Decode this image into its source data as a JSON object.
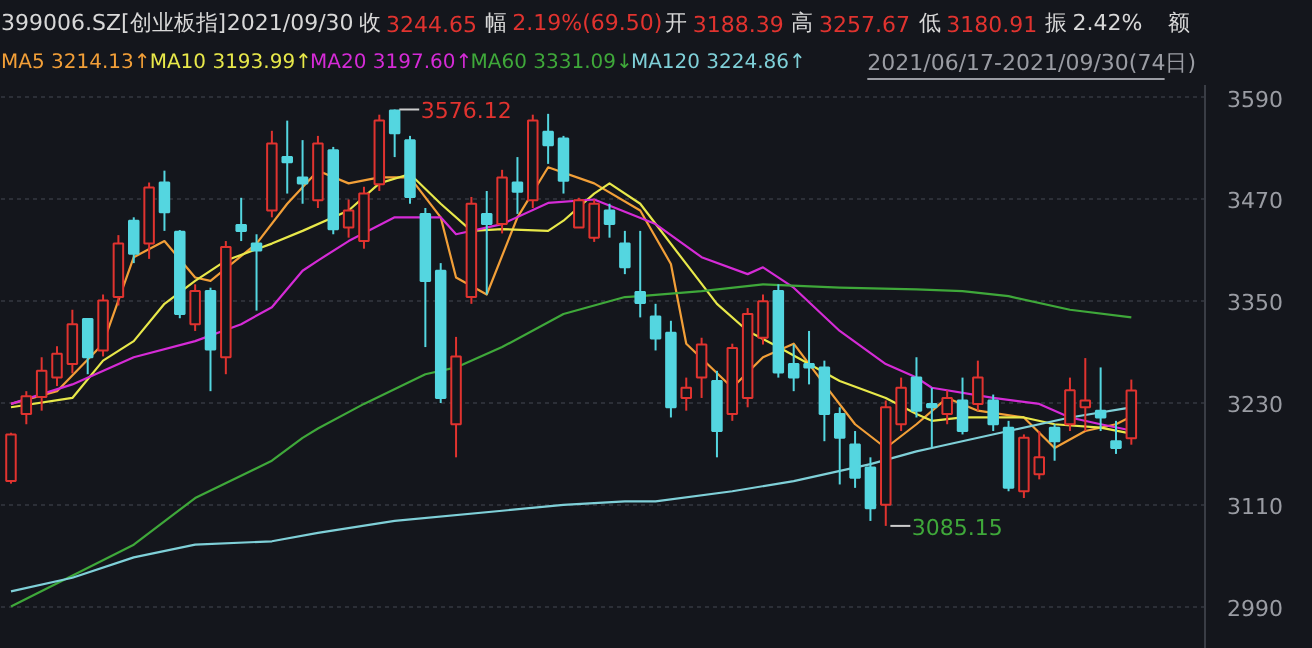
{
  "chart_data": {
    "type": "candlestick",
    "title": "399006.SZ[创业板指]",
    "subtitle": "2021/09/30",
    "annotations": [
      "收 3244.65",
      "幅 2.19%(69.50)",
      "开 3188.39",
      "高 3257.67",
      "低 3180.91",
      "振 2.42%",
      "额",
      "2021/06/17-2021/09/30(74日)",
      "3576.12",
      "3085.15"
    ],
    "categories": [
      null,
      null,
      null,
      null,
      null,
      null,
      null,
      null,
      null,
      null,
      null,
      null,
      null,
      null,
      null,
      null,
      null,
      null,
      null,
      null,
      null,
      null,
      null,
      null,
      null,
      null,
      null,
      null,
      null,
      null,
      null,
      null,
      null,
      null,
      null,
      null,
      null,
      null,
      null,
      null,
      null,
      null,
      null,
      null,
      null,
      null,
      null,
      null,
      null,
      null,
      null,
      null,
      null,
      null,
      null,
      null,
      null,
      null,
      null,
      null,
      null,
      null,
      null,
      null,
      null,
      null,
      null,
      null,
      null,
      null,
      null,
      null,
      null,
      null
    ],
    "ohlc": [
      [
        3138,
        3195,
        3135,
        3193
      ],
      [
        3217,
        3244,
        3205,
        3238
      ],
      [
        3237,
        3284,
        3221,
        3268
      ],
      [
        3260,
        3297,
        3250,
        3288
      ],
      [
        3276,
        3340,
        3265,
        3323
      ],
      [
        3329,
        3330,
        3264,
        3284
      ],
      [
        3292,
        3358,
        3285,
        3351
      ],
      [
        3355,
        3428,
        3345,
        3418
      ],
      [
        3445,
        3449,
        3395,
        3406
      ],
      [
        3418,
        3490,
        3400,
        3484
      ],
      [
        3490,
        3504,
        3433,
        3455
      ],
      [
        3432,
        3434,
        3330,
        3335
      ],
      [
        3323,
        3370,
        3315,
        3362
      ],
      [
        3362,
        3366,
        3244,
        3293
      ],
      [
        3284,
        3421,
        3264,
        3414
      ],
      [
        3440,
        3472,
        3421,
        3433
      ],
      [
        3418,
        3429,
        3339,
        3410
      ],
      [
        3457,
        3551,
        3449,
        3536
      ],
      [
        3520,
        3563,
        3477,
        3514
      ],
      [
        3496,
        3540,
        3465,
        3489
      ],
      [
        3469,
        3545,
        3460,
        3536
      ],
      [
        3528,
        3532,
        3429,
        3435
      ],
      [
        3437,
        3470,
        3425,
        3457
      ],
      [
        3421,
        3485,
        3412,
        3477
      ],
      [
        3488,
        3570,
        3480,
        3563
      ],
      [
        3575,
        3576.12,
        3520,
        3548
      ],
      [
        3540,
        3545,
        3465,
        3473
      ],
      [
        3453,
        3460,
        3296,
        3374
      ],
      [
        3386,
        3395,
        3230,
        3236
      ],
      [
        3205,
        3308,
        3166,
        3285
      ],
      [
        3355,
        3473,
        3347,
        3465
      ],
      [
        3453,
        3480,
        3358,
        3441
      ],
      [
        3441,
        3505,
        3430,
        3496
      ],
      [
        3490,
        3520,
        3453,
        3479
      ],
      [
        3469,
        3570,
        3460,
        3563
      ],
      [
        3550,
        3571,
        3512,
        3534
      ],
      [
        3542,
        3545,
        3477,
        3492
      ],
      [
        3437,
        3472,
        3437,
        3469
      ],
      [
        3425,
        3470,
        3420,
        3465
      ],
      [
        3457,
        3465,
        3425,
        3441
      ],
      [
        3418,
        3433,
        3382,
        3390
      ],
      [
        3361,
        3433,
        3331,
        3348
      ],
      [
        3332,
        3347,
        3292,
        3306
      ],
      [
        3313,
        3327,
        3213,
        3225
      ],
      [
        3236,
        3260,
        3221,
        3248
      ],
      [
        3260,
        3307,
        3236,
        3299
      ],
      [
        3256,
        3268,
        3166,
        3197
      ],
      [
        3217,
        3300,
        3209,
        3295
      ],
      [
        3236,
        3342,
        3225,
        3335
      ],
      [
        3307,
        3358,
        3299,
        3350
      ],
      [
        3362,
        3370,
        3260,
        3266
      ],
      [
        3276,
        3299,
        3244,
        3260
      ],
      [
        3276,
        3315,
        3252,
        3272
      ],
      [
        3272,
        3280,
        3185,
        3217
      ],
      [
        3217,
        3225,
        3134,
        3189
      ],
      [
        3181,
        3197,
        3130,
        3142
      ],
      [
        3154,
        3166,
        3091,
        3106
      ],
      [
        3110,
        3233,
        3085.15,
        3225
      ],
      [
        3205,
        3260,
        3197,
        3248
      ],
      [
        3260,
        3284,
        3213,
        3221
      ],
      [
        3229,
        3248,
        3178,
        3225
      ],
      [
        3217,
        3245,
        3205,
        3236
      ],
      [
        3233,
        3260,
        3193,
        3197
      ],
      [
        3229,
        3280,
        3221,
        3260
      ],
      [
        3233,
        3240,
        3197,
        3205
      ],
      [
        3201,
        3209,
        3126,
        3130
      ],
      [
        3126,
        3193,
        3118,
        3189
      ],
      [
        3146,
        3197,
        3140,
        3166
      ],
      [
        3201,
        3205,
        3162,
        3185
      ],
      [
        3205,
        3260,
        3197,
        3245
      ],
      [
        3225,
        3283,
        3197,
        3233
      ],
      [
        3221,
        3272,
        3197,
        3213
      ],
      [
        3185,
        3209,
        3170,
        3177
      ],
      [
        3188.39,
        3257.67,
        3180.91,
        3244.65
      ]
    ],
    "series": [
      {
        "name": "MA5 3214.13↑",
        "type": "line",
        "color": "#f29f38",
        "values": [
          3229,
          null,
          null,
          3244,
          null,
          null,
          3300,
          null,
          3402,
          null,
          3421,
          null,
          3378,
          3374,
          null,
          null,
          3418,
          null,
          3465,
          null,
          3504,
          null,
          3489,
          null,
          3496,
          null,
          3496,
          null,
          3449,
          3378,
          null,
          3358,
          null,
          3449,
          null,
          3508,
          null,
          null,
          3489,
          null,
          null,
          3457,
          null,
          3394,
          3300,
          null,
          null,
          3248,
          null,
          3284,
          null,
          3300,
          null,
          3252,
          null,
          3205,
          null,
          3177,
          null,
          3205,
          null,
          3236,
          null,
          3221,
          null,
          null,
          3213,
          null,
          3177,
          null,
          3197,
          null,
          3205,
          3214.13
        ]
      },
      {
        "name": "MA10 3193.99↑",
        "type": "line",
        "color": "#e8e84a",
        "values": [
          3225,
          null,
          null,
          null,
          3236,
          null,
          3280,
          null,
          3303,
          null,
          3347,
          null,
          3374,
          null,
          3398,
          null,
          null,
          3418,
          null,
          3433,
          null,
          null,
          3457,
          null,
          3489,
          null,
          3500,
          null,
          3465,
          null,
          3433,
          null,
          3435,
          null,
          null,
          3433,
          3445,
          null,
          3477,
          3489,
          null,
          3465,
          null,
          null,
          3394,
          null,
          3347,
          null,
          3315,
          null,
          3296,
          null,
          3276,
          null,
          3256,
          null,
          null,
          3236,
          null,
          3217,
          3209,
          null,
          3213,
          null,
          null,
          null,
          3213,
          null,
          3205,
          null,
          null,
          3201,
          null,
          3193.99
        ]
      },
      {
        "name": "MA20 3197.60↑",
        "type": "line",
        "color": "#d52bd6",
        "values": [
          3229,
          null,
          null,
          null,
          3252,
          null,
          null,
          null,
          3284,
          null,
          null,
          null,
          3303,
          null,
          null,
          3323,
          null,
          3343,
          null,
          3386,
          3398,
          null,
          3421,
          null,
          null,
          3449,
          null,
          null,
          3449,
          3429,
          null,
          null,
          3441,
          null,
          null,
          3466,
          null,
          null,
          3470,
          null,
          null,
          null,
          3441,
          null,
          null,
          3402,
          null,
          null,
          3382,
          3390,
          null,
          3366,
          null,
          null,
          3315,
          null,
          null,
          3276,
          null,
          3260,
          3248,
          null,
          null,
          null,
          3236,
          null,
          null,
          3229,
          null,
          3213,
          null,
          3205,
          null,
          3197.6
        ]
      },
      {
        "name": "MA60 3331.09↓",
        "type": "line",
        "color": "#3fa83a",
        "values": [
          2990,
          null,
          null,
          null,
          null,
          null,
          null,
          null,
          3063,
          null,
          null,
          null,
          3118,
          null,
          null,
          null,
          null,
          3162,
          null,
          3189,
          3200,
          null,
          null,
          3229,
          null,
          null,
          null,
          3264,
          null,
          3272,
          null,
          null,
          3296,
          null,
          null,
          null,
          3335,
          null,
          null,
          null,
          3355,
          3356,
          null,
          null,
          null,
          3362,
          null,
          null,
          null,
          3370,
          null,
          null,
          null,
          null,
          3366,
          null,
          null,
          null,
          null,
          3364,
          null,
          null,
          3362,
          null,
          null,
          3356,
          null,
          null,
          null,
          3340,
          null,
          null,
          null,
          3331.09
        ]
      },
      {
        "name": "MA120 3224.86↑",
        "type": "line",
        "color": "#7fd0d8",
        "values": [
          3008,
          null,
          null,
          null,
          3024,
          null,
          null,
          null,
          3048,
          null,
          null,
          null,
          3063,
          null,
          null,
          null,
          null,
          3067,
          null,
          null,
          3077,
          null,
          null,
          null,
          null,
          3091,
          null,
          null,
          null,
          null,
          null,
          null,
          3103,
          null,
          null,
          null,
          3110,
          null,
          null,
          null,
          3114,
          null,
          3114,
          null,
          null,
          null,
          null,
          3126,
          null,
          null,
          null,
          3138,
          null,
          null,
          null,
          null,
          3158,
          null,
          null,
          3173,
          3177,
          null,
          null,
          null,
          null,
          3197,
          null,
          null,
          null,
          3213,
          null,
          null,
          null,
          3224.86
        ]
      }
    ],
    "ylim": [
      2940,
      3605
    ],
    "yticks": [
      2990,
      3110,
      3230,
      3350,
      3470,
      3590
    ],
    "grid": "y",
    "legend": "top",
    "tick_labels": "y"
  }
}
